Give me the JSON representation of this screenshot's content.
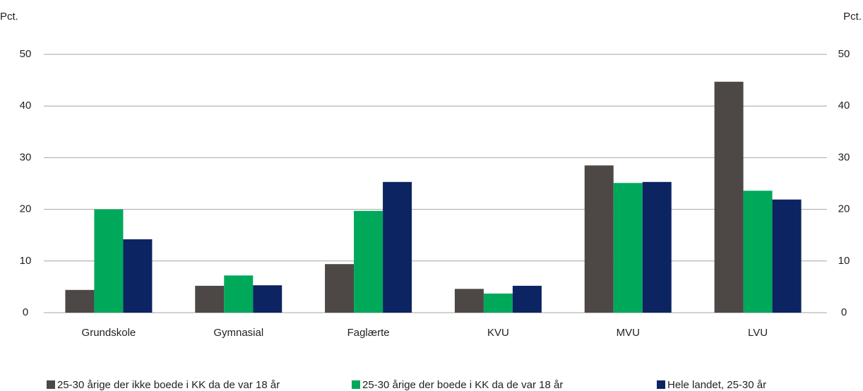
{
  "chart_data": {
    "type": "bar",
    "y_label": "Pct.",
    "y2_label": "Pct.",
    "categories": [
      "Grundskole",
      "Gymnasial",
      "Faglærte",
      "KVU",
      "MVU",
      "LVU"
    ],
    "series": [
      {
        "name": "25-30 årige der ikke boede i KK da de var 18 år",
        "color": "#4d4845",
        "values": [
          4.4,
          5.2,
          9.4,
          4.6,
          28.5,
          44.7
        ]
      },
      {
        "name": "25-30 årige der boede i KK da de var 18 år",
        "color": "#00a85a",
        "values": [
          20.0,
          7.2,
          19.7,
          3.7,
          25.1,
          23.6
        ]
      },
      {
        "name": "Hele landet, 25-30 år",
        "color": "#0c2461",
        "values": [
          14.2,
          5.3,
          25.3,
          5.2,
          25.3,
          21.9
        ]
      }
    ],
    "ylim": [
      0,
      50
    ],
    "yticks": [
      0,
      10,
      20,
      30,
      40,
      50
    ],
    "y2lim": [
      0,
      50
    ],
    "y2ticks": [
      0,
      10,
      20,
      30,
      40,
      50
    ],
    "grid": true,
    "legend": "bottom"
  }
}
